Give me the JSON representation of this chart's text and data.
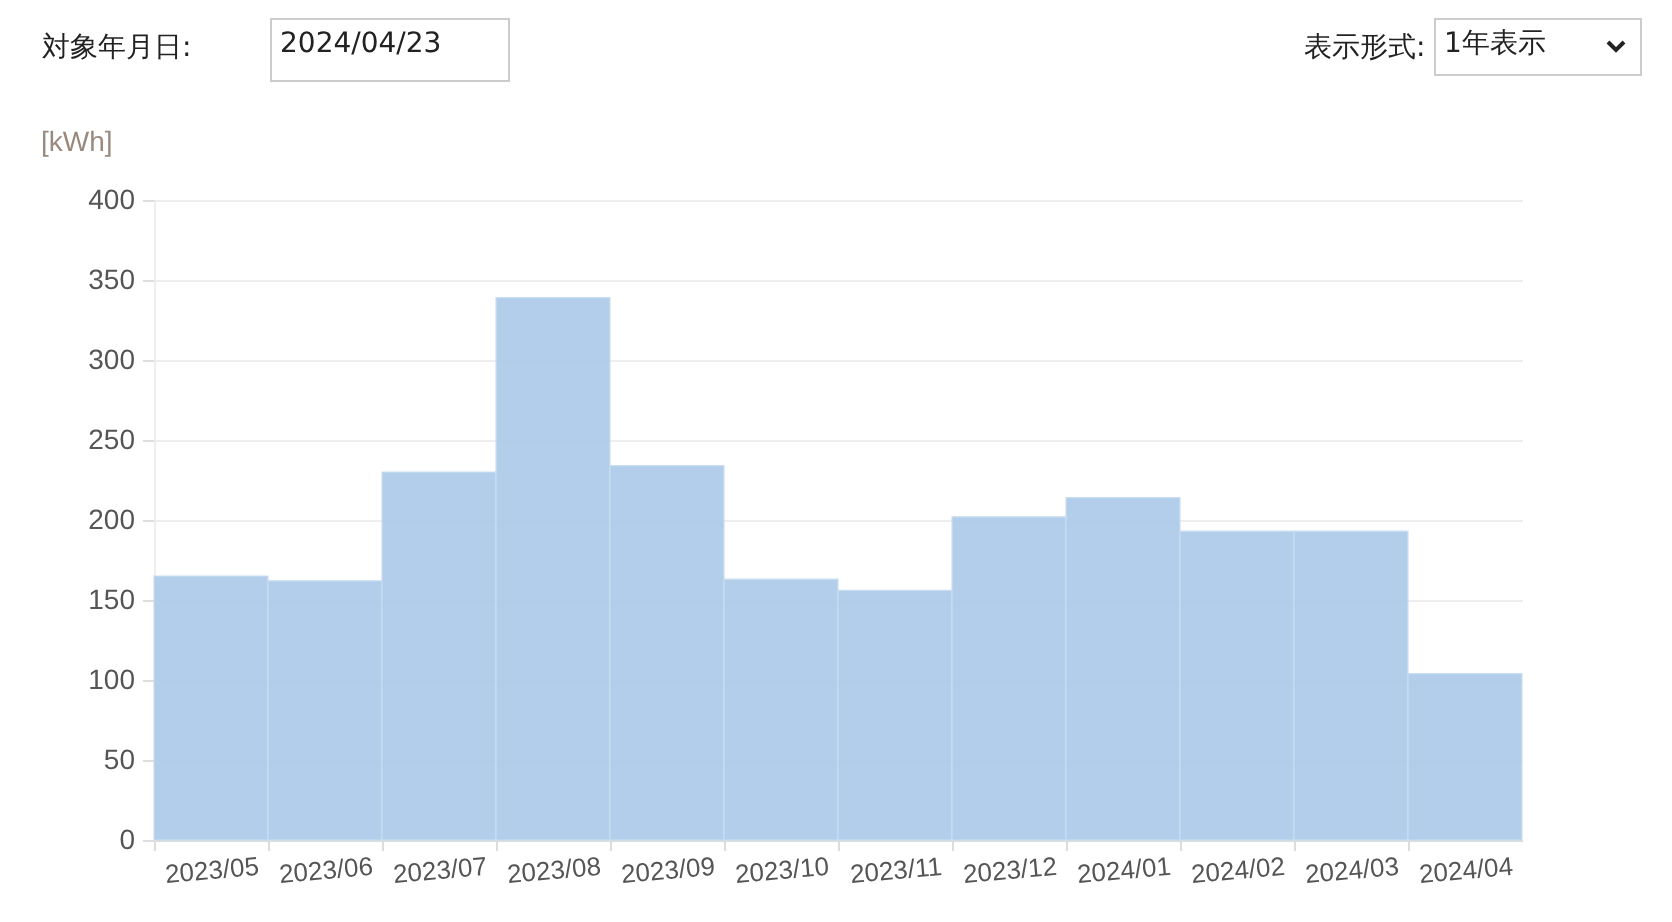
{
  "chart_data": {
    "type": "bar",
    "categories": [
      "2023/05",
      "2023/06",
      "2023/07",
      "2023/08",
      "2023/09",
      "2023/10",
      "2023/11",
      "2023/12",
      "2024/01",
      "2024/02",
      "2024/03",
      "2024/04"
    ],
    "values": [
      165,
      162,
      230,
      339,
      234,
      163,
      156,
      202,
      214,
      193,
      193,
      104
    ],
    "color": "#aecce9",
    "ylabel": "[kWh]",
    "ylim": [
      0,
      400
    ],
    "yticks": [
      0,
      50,
      100,
      150,
      200,
      250,
      300,
      350,
      400
    ],
    "grid": "y",
    "annotations": [
      "対象年月日:",
      "2024/04/23",
      "表示形式:",
      "1年表示"
    ]
  }
}
